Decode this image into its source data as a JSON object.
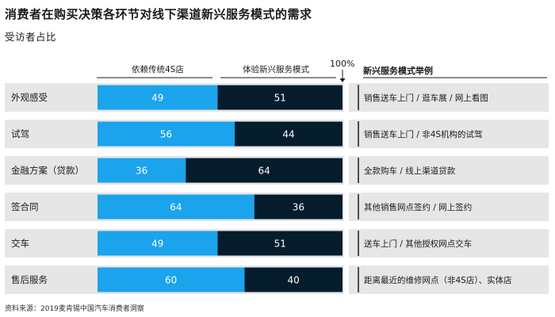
{
  "title": "消费者在购买决策各环节对线下渠道新兴服务模式的需求",
  "subtitle": "受访者占比",
  "source": "资料来源：2019麦肯锡中国汽车消费者洞察",
  "total_label": "100%",
  "examples_header": "新兴服务模式举例",
  "colors": {
    "dealer": "#1ba3ec",
    "new_model": "#051c2c",
    "row_bg": "#e6e6e6",
    "divider": "#1a1a1a"
  },
  "chart_data": {
    "type": "bar",
    "stacked": true,
    "orientation": "horizontal",
    "categories": [
      "外观感受",
      "试驾",
      "金融方案（贷款）",
      "签合同",
      "交车",
      "售后服务"
    ],
    "series": [
      {
        "name": "依赖传统4S店",
        "values": [
          49,
          56,
          36,
          64,
          49,
          60
        ]
      },
      {
        "name": "体验新兴服务模式",
        "values": [
          51,
          44,
          64,
          36,
          51,
          40
        ]
      }
    ],
    "xlim": [
      0,
      100
    ],
    "examples": [
      "销售送车上门 / 逛车展 / 网上看图",
      "销售送车上门 / 非4S机构的试驾",
      "全款购车 / 线上渠道贷款",
      "其他销售网点签约 / 网上签约",
      "送车上门 / 其他授权网点交车",
      "距离最近的维修网点（非4S店）、实体店"
    ]
  }
}
